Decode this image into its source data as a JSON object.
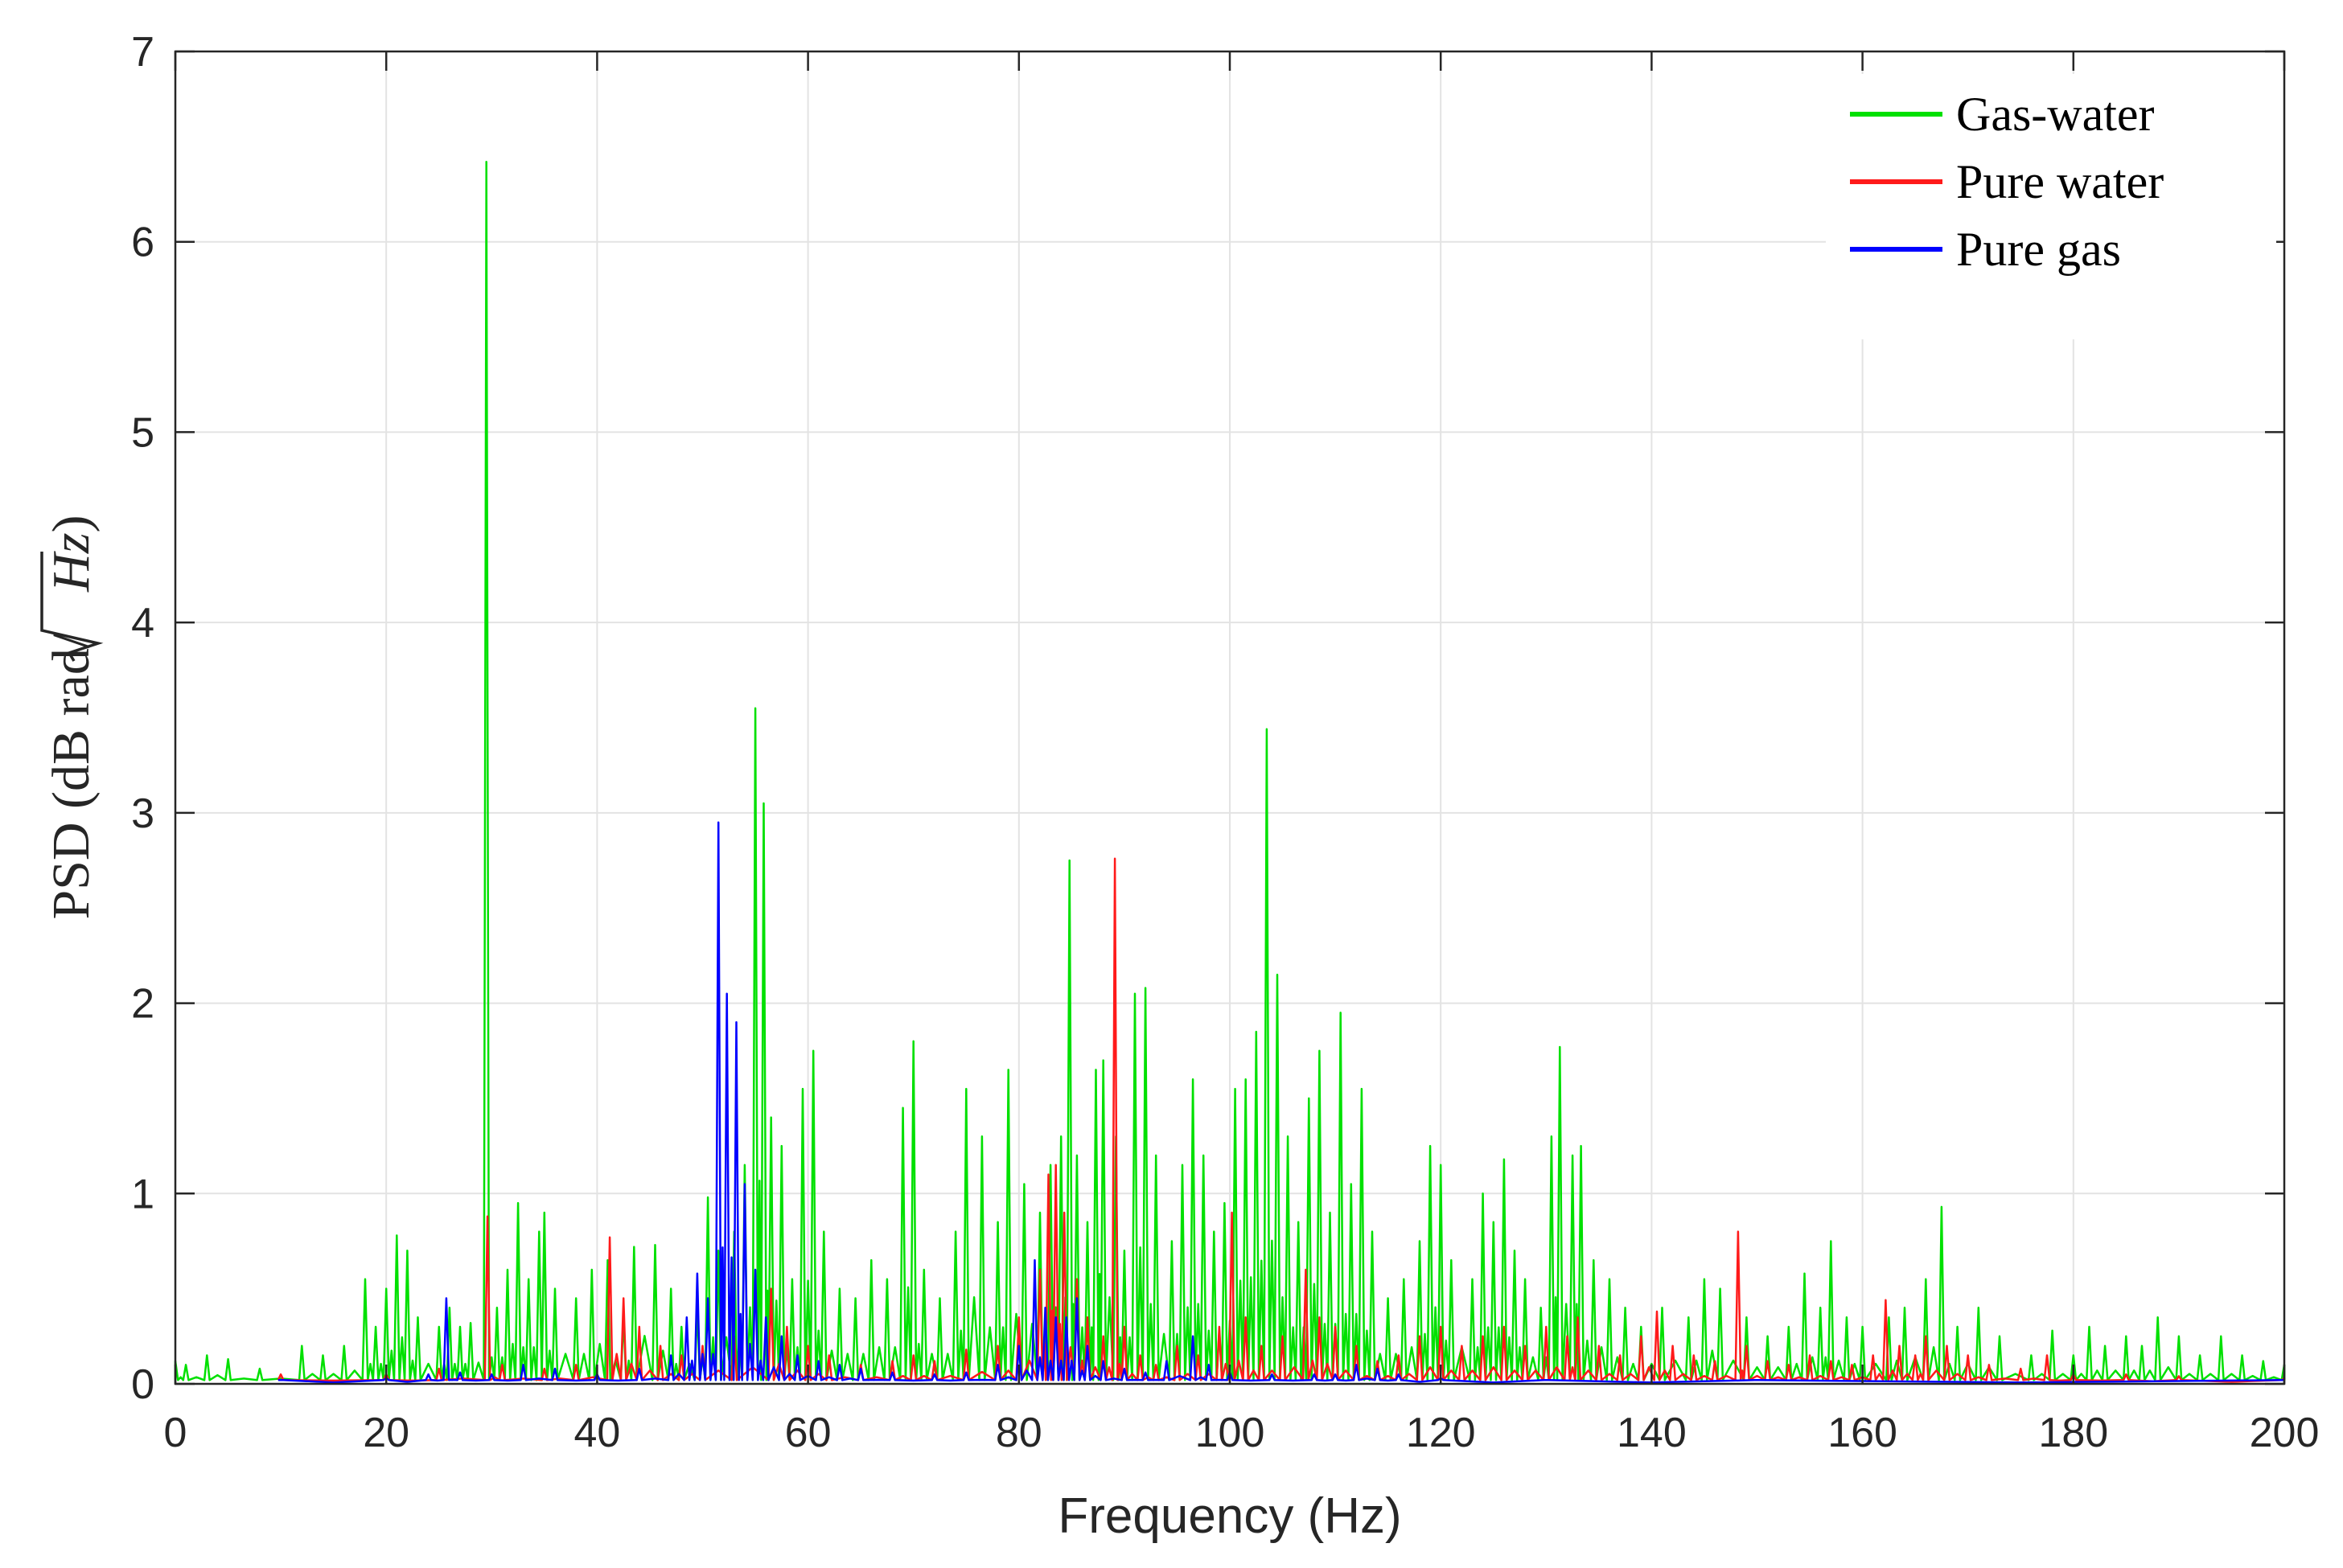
{
  "chart_data": {
    "type": "line",
    "xlabel": "Frequency (Hz)",
    "ylabel_text": "PSD (dB rad/",
    "ylabel_radicand": "Hz",
    "ylabel_close": ")",
    "xlim": [
      0,
      200
    ],
    "ylim": [
      0,
      7
    ],
    "xticks": [
      0,
      20,
      40,
      60,
      80,
      100,
      120,
      140,
      160,
      180,
      200
    ],
    "yticks": [
      0,
      1,
      2,
      3,
      4,
      5,
      6,
      7
    ],
    "xtick_labels": [
      "0",
      "20",
      "40",
      "60",
      "80",
      "100",
      "120",
      "140",
      "160",
      "180",
      "200"
    ],
    "ytick_labels": [
      "0",
      "1",
      "2",
      "3",
      "4",
      "5",
      "6",
      "7"
    ],
    "grid": true,
    "legend_position": "top-right",
    "series": [
      {
        "name": "Gas-water",
        "color": "#00e000",
        "peaks": [
          [
            0,
            0.12
          ],
          [
            1,
            0.1
          ],
          [
            3,
            0.15
          ],
          [
            5,
            0.13
          ],
          [
            8,
            0.08
          ],
          [
            12,
            0.2
          ],
          [
            14,
            0.15
          ],
          [
            16,
            0.2
          ],
          [
            18,
            0.55
          ],
          [
            19,
            0.3
          ],
          [
            20,
            0.5
          ],
          [
            21,
            0.78
          ],
          [
            22,
            0.7
          ],
          [
            23,
            0.35
          ],
          [
            25,
            0.3
          ],
          [
            26,
            0.4
          ],
          [
            27,
            0.3
          ],
          [
            28,
            0.32
          ],
          [
            29.5,
            6.42
          ],
          [
            30.5,
            0.4
          ],
          [
            31.5,
            0.6
          ],
          [
            32.5,
            0.95
          ],
          [
            33.5,
            0.55
          ],
          [
            34.5,
            0.8
          ],
          [
            35,
            0.9
          ],
          [
            36,
            0.5
          ],
          [
            38,
            0.45
          ],
          [
            39.5,
            0.6
          ],
          [
            41,
            0.65
          ],
          [
            42.5,
            0.35
          ],
          [
            43.5,
            0.72
          ],
          [
            45.5,
            0.73
          ],
          [
            47,
            0.5
          ],
          [
            48,
            0.3
          ],
          [
            49.5,
            0.4
          ],
          [
            50.5,
            0.98
          ],
          [
            51.5,
            0.7
          ],
          [
            53,
            0.8
          ],
          [
            54,
            1.15
          ],
          [
            55,
            3.55
          ],
          [
            55.8,
            3.05
          ],
          [
            56.5,
            1.4
          ],
          [
            57.5,
            1.25
          ],
          [
            58.5,
            0.55
          ],
          [
            59.5,
            1.55
          ],
          [
            60.5,
            1.75
          ],
          [
            61.5,
            0.8
          ],
          [
            63,
            0.5
          ],
          [
            64.5,
            0.45
          ],
          [
            66,
            0.65
          ],
          [
            67.5,
            0.55
          ],
          [
            69,
            1.45
          ],
          [
            70,
            1.8
          ],
          [
            71,
            0.6
          ],
          [
            72.5,
            0.45
          ],
          [
            74,
            0.8
          ],
          [
            75,
            1.55
          ],
          [
            76.5,
            1.3
          ],
          [
            78,
            0.85
          ],
          [
            79,
            1.65
          ],
          [
            80.5,
            1.05
          ],
          [
            82,
            0.9
          ],
          [
            83,
            1.15
          ],
          [
            84,
            1.3
          ],
          [
            84.8,
            2.75
          ],
          [
            85.5,
            1.2
          ],
          [
            86.5,
            0.85
          ],
          [
            87.3,
            1.65
          ],
          [
            88,
            1.7
          ],
          [
            89.2,
            1.3
          ],
          [
            90,
            0.7
          ],
          [
            91,
            2.05
          ],
          [
            92,
            2.08
          ],
          [
            93,
            1.2
          ],
          [
            94.5,
            0.75
          ],
          [
            95.5,
            1.15
          ],
          [
            96.5,
            1.6
          ],
          [
            97.5,
            1.2
          ],
          [
            98.5,
            0.8
          ],
          [
            99.5,
            0.95
          ],
          [
            100.5,
            1.55
          ],
          [
            101.5,
            1.6
          ],
          [
            102.5,
            1.85
          ],
          [
            103.5,
            3.44
          ],
          [
            104.5,
            2.15
          ],
          [
            105.5,
            1.3
          ],
          [
            106.5,
            0.85
          ],
          [
            107.5,
            1.5
          ],
          [
            108.5,
            1.75
          ],
          [
            109.5,
            0.9
          ],
          [
            110.5,
            1.95
          ],
          [
            111.5,
            1.05
          ],
          [
            112.5,
            1.55
          ],
          [
            113.5,
            0.8
          ],
          [
            115,
            0.45
          ],
          [
            116.5,
            0.55
          ],
          [
            118,
            0.75
          ],
          [
            119,
            1.25
          ],
          [
            120,
            1.15
          ],
          [
            121,
            0.65
          ],
          [
            123,
            0.55
          ],
          [
            124,
            1.0
          ],
          [
            125,
            0.85
          ],
          [
            126,
            1.18
          ],
          [
            127,
            0.7
          ],
          [
            128,
            0.55
          ],
          [
            129.5,
            0.4
          ],
          [
            130.5,
            1.3
          ],
          [
            131.3,
            1.77
          ],
          [
            132.5,
            1.2
          ],
          [
            133.3,
            1.25
          ],
          [
            134.5,
            0.65
          ],
          [
            136,
            0.55
          ],
          [
            137.5,
            0.4
          ],
          [
            139,
            0.3
          ],
          [
            141,
            0.4
          ],
          [
            143.5,
            0.35
          ],
          [
            145,
            0.55
          ],
          [
            146.5,
            0.5
          ],
          [
            149,
            0.35
          ],
          [
            151,
            0.25
          ],
          [
            153,
            0.3
          ],
          [
            154.5,
            0.58
          ],
          [
            156,
            0.4
          ],
          [
            157,
            0.75
          ],
          [
            158.5,
            0.35
          ],
          [
            160,
            0.3
          ],
          [
            162.5,
            0.35
          ],
          [
            164,
            0.4
          ],
          [
            166,
            0.55
          ],
          [
            167.5,
            0.93
          ],
          [
            169,
            0.3
          ],
          [
            171,
            0.4
          ],
          [
            173,
            0.25
          ],
          [
            176,
            0.15
          ],
          [
            178,
            0.28
          ],
          [
            180,
            0.15
          ],
          [
            181.5,
            0.3
          ],
          [
            183,
            0.2
          ],
          [
            185,
            0.25
          ],
          [
            186.5,
            0.2
          ],
          [
            188,
            0.35
          ],
          [
            190,
            0.25
          ],
          [
            192,
            0.15
          ],
          [
            194,
            0.25
          ],
          [
            196,
            0.15
          ],
          [
            198,
            0.12
          ],
          [
            200,
            0.1
          ]
        ]
      },
      {
        "name": "Pure water",
        "color": "#ff1a1a",
        "peaks": [
          [
            10,
            0.05
          ],
          [
            20,
            0.05
          ],
          [
            25,
            0.08
          ],
          [
            29.6,
            0.88
          ],
          [
            31,
            0.1
          ],
          [
            35,
            0.08
          ],
          [
            38,
            0.1
          ],
          [
            41.2,
            0.77
          ],
          [
            42.5,
            0.45
          ],
          [
            44,
            0.3
          ],
          [
            46,
            0.2
          ],
          [
            48,
            0.15
          ],
          [
            50,
            0.2
          ],
          [
            53,
            0.25
          ],
          [
            56.5,
            0.5
          ],
          [
            58,
            0.3
          ],
          [
            60,
            0.2
          ],
          [
            62,
            0.15
          ],
          [
            65,
            0.1
          ],
          [
            68,
            0.12
          ],
          [
            70,
            0.15
          ],
          [
            72,
            0.12
          ],
          [
            75,
            0.18
          ],
          [
            78,
            0.2
          ],
          [
            80,
            0.35
          ],
          [
            82,
            0.6
          ],
          [
            82.8,
            1.1
          ],
          [
            83.5,
            1.15
          ],
          [
            84.3,
            0.9
          ],
          [
            85.5,
            0.55
          ],
          [
            86.5,
            0.35
          ],
          [
            88,
            0.25
          ],
          [
            89.1,
            2.76
          ],
          [
            90,
            0.3
          ],
          [
            91.5,
            0.15
          ],
          [
            93,
            0.1
          ],
          [
            95,
            0.2
          ],
          [
            97,
            0.15
          ],
          [
            99,
            0.3
          ],
          [
            100.2,
            0.9
          ],
          [
            101.5,
            0.35
          ],
          [
            103,
            0.2
          ],
          [
            105,
            0.25
          ],
          [
            107.2,
            0.6
          ],
          [
            108.5,
            0.35
          ],
          [
            110,
            0.3
          ],
          [
            112,
            0.2
          ],
          [
            114,
            0.12
          ],
          [
            116,
            0.15
          ],
          [
            118,
            0.25
          ],
          [
            120,
            0.3
          ],
          [
            122,
            0.2
          ],
          [
            124,
            0.25
          ],
          [
            126,
            0.3
          ],
          [
            128,
            0.2
          ],
          [
            130,
            0.3
          ],
          [
            132,
            0.25
          ],
          [
            133,
            0.35
          ],
          [
            135,
            0.2
          ],
          [
            137,
            0.15
          ],
          [
            139,
            0.25
          ],
          [
            140.5,
            0.38
          ],
          [
            142,
            0.2
          ],
          [
            144,
            0.15
          ],
          [
            146,
            0.12
          ],
          [
            148.2,
            0.8
          ],
          [
            149,
            0.2
          ],
          [
            151,
            0.12
          ],
          [
            153,
            0.1
          ],
          [
            155,
            0.15
          ],
          [
            157,
            0.12
          ],
          [
            159,
            0.1
          ],
          [
            161,
            0.15
          ],
          [
            162.2,
            0.44
          ],
          [
            163.5,
            0.2
          ],
          [
            165,
            0.15
          ],
          [
            166,
            0.25
          ],
          [
            168,
            0.2
          ],
          [
            170,
            0.15
          ],
          [
            172,
            0.1
          ],
          [
            175,
            0.08
          ],
          [
            177.5,
            0.15
          ],
          [
            180,
            0.05
          ],
          [
            185,
            0.05
          ],
          [
            190,
            0.04
          ],
          [
            200,
            0.03
          ]
        ]
      },
      {
        "name": "Pure gas",
        "color": "#0000ff",
        "peaks": [
          [
            10,
            0.02
          ],
          [
            20,
            0.03
          ],
          [
            24,
            0.05
          ],
          [
            25.7,
            0.45
          ],
          [
            27,
            0.06
          ],
          [
            30,
            0.05
          ],
          [
            33,
            0.1
          ],
          [
            36,
            0.08
          ],
          [
            40,
            0.05
          ],
          [
            44,
            0.08
          ],
          [
            47,
            0.15
          ],
          [
            48.5,
            0.35
          ],
          [
            49.5,
            0.58
          ],
          [
            50.5,
            0.45
          ],
          [
            51.5,
            2.95
          ],
          [
            52.3,
            2.05
          ],
          [
            53.2,
            1.9
          ],
          [
            54,
            1.05
          ],
          [
            55,
            0.6
          ],
          [
            56,
            0.35
          ],
          [
            57.5,
            0.25
          ],
          [
            59,
            0.15
          ],
          [
            61,
            0.12
          ],
          [
            63,
            0.1
          ],
          [
            65,
            0.08
          ],
          [
            68,
            0.06
          ],
          [
            72,
            0.05
          ],
          [
            75,
            0.06
          ],
          [
            78,
            0.1
          ],
          [
            80,
            0.2
          ],
          [
            81.5,
            0.65
          ],
          [
            82.5,
            0.4
          ],
          [
            83.5,
            0.35
          ],
          [
            84.5,
            0.35
          ],
          [
            85.5,
            0.45
          ],
          [
            86.5,
            0.2
          ],
          [
            88,
            0.12
          ],
          [
            90,
            0.08
          ],
          [
            92,
            0.06
          ],
          [
            94,
            0.12
          ],
          [
            96.5,
            0.25
          ],
          [
            98,
            0.1
          ],
          [
            100,
            0.06
          ],
          [
            104,
            0.05
          ],
          [
            108,
            0.05
          ],
          [
            110,
            0.05
          ],
          [
            112,
            0.1
          ],
          [
            114,
            0.08
          ],
          [
            116,
            0.05
          ],
          [
            120,
            0.03
          ],
          [
            130,
            0.02
          ],
          [
            150,
            0.02
          ],
          [
            200,
            0.02
          ]
        ]
      }
    ]
  }
}
